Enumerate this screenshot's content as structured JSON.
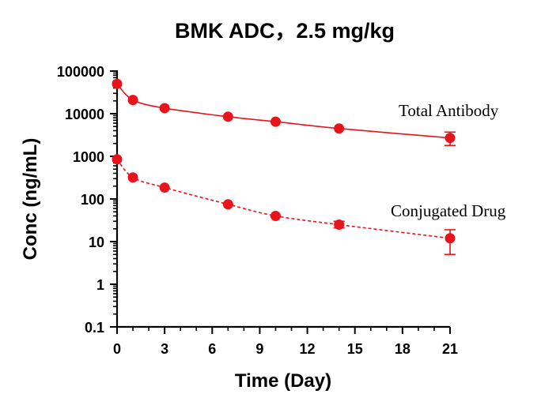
{
  "chart_data": {
    "type": "line",
    "title": "BMK ADC，2.5 mg/kg",
    "xlabel": "Time (Day)",
    "ylabel": "Conc (ng/mL)",
    "yscale": "log",
    "xlim": [
      0,
      21
    ],
    "ylim": [
      0.1,
      100000
    ],
    "xticks": [
      "0",
      "3",
      "6",
      "9",
      "12",
      "15",
      "18",
      "21"
    ],
    "yticks": [
      "0.1",
      "1",
      "10",
      "100",
      "1000",
      "10000",
      "100000"
    ],
    "grid": false,
    "color": "#e8141c",
    "series": [
      {
        "name": "Total Antibody",
        "line_style": "solid",
        "x": [
          0,
          1,
          3,
          7,
          10,
          14,
          21
        ],
        "values": [
          50000,
          21000,
          13500,
          8500,
          6500,
          4500,
          2700
        ],
        "err_low": [
          0,
          0,
          0,
          0,
          0,
          0,
          1800
        ],
        "err_high": [
          0,
          0,
          0,
          0,
          0,
          0,
          3700
        ]
      },
      {
        "name": "Conjugated Drug",
        "line_style": "dashed",
        "x": [
          0,
          1,
          3,
          7,
          10,
          14,
          21
        ],
        "values": [
          850,
          320,
          185,
          75,
          40,
          25,
          12
        ],
        "err_low": [
          0,
          0,
          0,
          0,
          0,
          21,
          5
        ],
        "err_high": [
          0,
          0,
          0,
          0,
          0,
          30,
          19
        ]
      }
    ]
  }
}
